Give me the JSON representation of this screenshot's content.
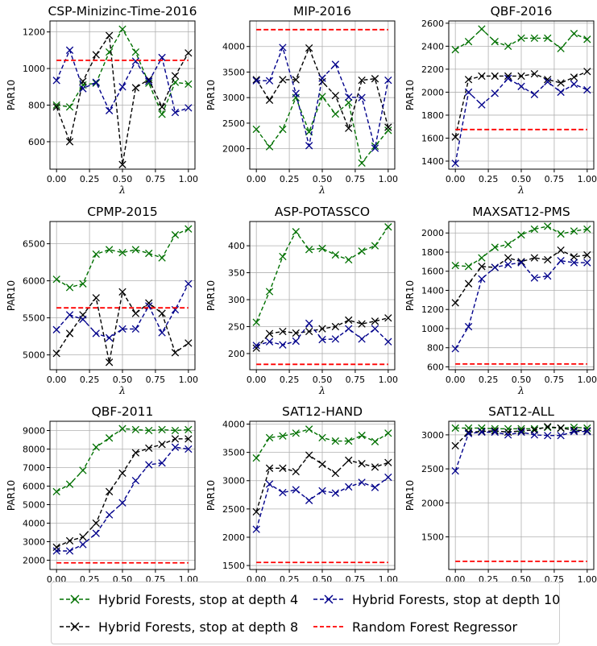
{
  "series_styles": [
    {
      "name": "Hybrid Forests, stop at depth 4",
      "color": "#007000",
      "marker": "x",
      "dash": "dashed"
    },
    {
      "name": "Hybrid Forests, stop at depth 8",
      "color": "#000000",
      "marker": "x",
      "dash": "dashed"
    },
    {
      "name": "Hybrid Forests, stop at depth 10",
      "color": "#00008b",
      "marker": "x",
      "dash": "dashed"
    },
    {
      "name": "Random Forest Regressor",
      "color": "#ff0000",
      "marker": "none",
      "dash": "dashed"
    }
  ],
  "legend": {
    "placement": "bottom-center",
    "items": [
      "Hybrid Forests, stop at depth 4",
      "Hybrid Forests, stop at depth 10",
      "Hybrid Forests, stop at depth 8",
      "Random Forest Regressor"
    ]
  },
  "chart_data": [
    {
      "type": "line",
      "title": "CSP-Minizinc-Time-2016",
      "xlabel": "λ",
      "ylabel": "PAR10",
      "x": [
        0,
        0.1,
        0.2,
        0.3,
        0.4,
        0.5,
        0.6,
        0.7,
        0.8,
        0.9,
        1.0
      ],
      "xlim": [
        -0.05,
        1.05
      ],
      "ylim": [
        450,
        1260
      ],
      "xticks": [
        "0.00",
        "0.25",
        "0.50",
        "0.75",
        "1.00"
      ],
      "xtick_values": [
        0,
        0.25,
        0.5,
        0.75,
        1.0
      ],
      "yticks": [
        600,
        800,
        1000,
        1200
      ],
      "grid": true,
      "series": [
        {
          "name": "Hybrid Forests, stop at depth 4",
          "values": [
            800,
            790,
            910,
            920,
            1090,
            1215,
            1090,
            920,
            750,
            925,
            915
          ]
        },
        {
          "name": "Hybrid Forests, stop at depth 8",
          "values": [
            790,
            600,
            930,
            1075,
            1180,
            475,
            895,
            940,
            790,
            960,
            1085
          ]
        },
        {
          "name": "Hybrid Forests, stop at depth 10",
          "values": [
            935,
            1100,
            890,
            925,
            770,
            900,
            1040,
            930,
            1060,
            760,
            785
          ]
        },
        {
          "name": "Random Forest Regressor",
          "values": [
            1045,
            1045,
            1045,
            1045,
            1045,
            1045,
            1045,
            1045,
            1045,
            1045,
            1045
          ]
        }
      ]
    },
    {
      "type": "line",
      "title": "MIP-2016",
      "xlabel": "λ",
      "ylabel": "PAR10",
      "x": [
        0,
        0.1,
        0.2,
        0.3,
        0.4,
        0.5,
        0.6,
        0.7,
        0.8,
        0.9,
        1.0
      ],
      "xlim": [
        -0.05,
        1.05
      ],
      "ylim": [
        1600,
        4500
      ],
      "xticks": [
        "0.00",
        "0.25",
        "0.50",
        "0.75",
        "1.00"
      ],
      "xtick_values": [
        0,
        0.25,
        0.5,
        0.75,
        1.0
      ],
      "yticks": [
        2000,
        2500,
        3000,
        3500,
        4000
      ],
      "grid": true,
      "series": [
        {
          "name": "Hybrid Forests, stop at depth 4",
          "values": [
            2380,
            2040,
            2380,
            3000,
            2330,
            3020,
            2680,
            2900,
            1720,
            2050,
            2360
          ]
        },
        {
          "name": "Hybrid Forests, stop at depth 8",
          "values": [
            3350,
            2950,
            3350,
            3350,
            3970,
            3310,
            3040,
            2400,
            3340,
            3370,
            2420
          ]
        },
        {
          "name": "Hybrid Forests, stop at depth 10",
          "values": [
            3330,
            3330,
            3980,
            3080,
            2060,
            3380,
            3650,
            3010,
            3000,
            2010,
            3340
          ]
        },
        {
          "name": "Random Forest Regressor",
          "values": [
            4330,
            4330,
            4330,
            4330,
            4330,
            4330,
            4330,
            4330,
            4330,
            4330,
            4330
          ]
        }
      ]
    },
    {
      "type": "line",
      "title": "QBF-2016",
      "xlabel": "λ",
      "ylabel": "PAR10",
      "x": [
        0,
        0.1,
        0.2,
        0.3,
        0.4,
        0.5,
        0.6,
        0.7,
        0.8,
        0.9,
        1.0
      ],
      "xlim": [
        -0.05,
        1.05
      ],
      "ylim": [
        1330,
        2620
      ],
      "xticks": [
        "0.00",
        "0.25",
        "0.50",
        "0.75",
        "1.00"
      ],
      "xtick_values": [
        0,
        0.25,
        0.5,
        0.75,
        1.0
      ],
      "yticks": [
        1400,
        1600,
        1800,
        2000,
        2200,
        2400,
        2600
      ],
      "grid": true,
      "series": [
        {
          "name": "Hybrid Forests, stop at depth 4",
          "values": [
            2370,
            2440,
            2550,
            2440,
            2400,
            2470,
            2470,
            2470,
            2380,
            2510,
            2460
          ]
        },
        {
          "name": "Hybrid Forests, stop at depth 8",
          "values": [
            1610,
            2110,
            2140,
            2140,
            2140,
            2140,
            2160,
            2110,
            2080,
            2130,
            2180
          ]
        },
        {
          "name": "Hybrid Forests, stop at depth 10",
          "values": [
            1380,
            2000,
            1890,
            1990,
            2120,
            2050,
            1980,
            2090,
            2000,
            2070,
            2020
          ]
        },
        {
          "name": "Random Forest Regressor",
          "values": [
            1675,
            1675,
            1675,
            1675,
            1675,
            1675,
            1675,
            1675,
            1675,
            1675,
            1675
          ]
        }
      ]
    },
    {
      "type": "line",
      "title": "CPMP-2015",
      "xlabel": "λ",
      "ylabel": "PAR10",
      "x": [
        0,
        0.1,
        0.2,
        0.3,
        0.4,
        0.5,
        0.6,
        0.7,
        0.8,
        0.9,
        1.0
      ],
      "xlim": [
        -0.05,
        1.05
      ],
      "ylim": [
        4800,
        6800
      ],
      "xticks": [
        "0.00",
        "0.25",
        "0.50",
        "0.75",
        "1.00"
      ],
      "xtick_values": [
        0,
        0.25,
        0.5,
        0.75,
        1.0
      ],
      "yticks": [
        5000,
        5500,
        6000,
        6500
      ],
      "grid": true,
      "series": [
        {
          "name": "Hybrid Forests, stop at depth 4",
          "values": [
            6020,
            5910,
            5960,
            6360,
            6420,
            6380,
            6420,
            6370,
            6310,
            6620,
            6700
          ]
        },
        {
          "name": "Hybrid Forests, stop at depth 8",
          "values": [
            5020,
            5290,
            5540,
            5770,
            4900,
            5850,
            5560,
            5700,
            5560,
            5030,
            5160
          ]
        },
        {
          "name": "Hybrid Forests, stop at depth 10",
          "values": [
            5340,
            5540,
            5480,
            5290,
            5230,
            5350,
            5350,
            5660,
            5300,
            5610,
            5960
          ]
        },
        {
          "name": "Random Forest Regressor",
          "values": [
            5635,
            5635,
            5635,
            5635,
            5635,
            5635,
            5635,
            5635,
            5635,
            5635,
            5635
          ]
        }
      ]
    },
    {
      "type": "line",
      "title": "ASP-POTASSCO",
      "xlabel": "λ",
      "ylabel": "PAR10",
      "x": [
        0,
        0.1,
        0.2,
        0.3,
        0.4,
        0.5,
        0.6,
        0.7,
        0.8,
        0.9,
        1.0
      ],
      "xlim": [
        -0.05,
        1.05
      ],
      "ylim": [
        170,
        445
      ],
      "xticks": [
        "0.00",
        "0.25",
        "0.50",
        "0.75",
        "1.00"
      ],
      "xtick_values": [
        0,
        0.25,
        0.5,
        0.75,
        1.0
      ],
      "yticks": [
        200,
        250,
        300,
        350,
        400
      ],
      "grid": true,
      "series": [
        {
          "name": "Hybrid Forests, stop at depth 4",
          "values": [
            258,
            315,
            380,
            426,
            393,
            395,
            383,
            374,
            390,
            400,
            435
          ]
        },
        {
          "name": "Hybrid Forests, stop at depth 8",
          "values": [
            210,
            237,
            241,
            238,
            241,
            246,
            250,
            262,
            255,
            260,
            266
          ]
        },
        {
          "name": "Hybrid Forests, stop at depth 10",
          "values": [
            215,
            222,
            216,
            223,
            256,
            226,
            227,
            246,
            227,
            246,
            222
          ]
        },
        {
          "name": "Random Forest Regressor",
          "values": [
            180,
            180,
            180,
            180,
            180,
            180,
            180,
            180,
            180,
            180,
            180
          ]
        }
      ]
    },
    {
      "type": "line",
      "title": "MAXSAT12-PMS",
      "xlabel": "λ",
      "ylabel": "PAR10",
      "x": [
        0,
        0.1,
        0.2,
        0.3,
        0.4,
        0.5,
        0.6,
        0.7,
        0.8,
        0.9,
        1.0
      ],
      "xlim": [
        -0.05,
        1.05
      ],
      "ylim": [
        570,
        2120
      ],
      "xticks": [
        "0.00",
        "0.25",
        "0.50",
        "0.75",
        "1.00"
      ],
      "xtick_values": [
        0,
        0.25,
        0.5,
        0.75,
        1.0
      ],
      "yticks": [
        600,
        800,
        1000,
        1200,
        1400,
        1600,
        1800,
        2000
      ],
      "grid": true,
      "series": [
        {
          "name": "Hybrid Forests, stop at depth 4",
          "values": [
            1660,
            1650,
            1740,
            1850,
            1880,
            1980,
            2040,
            2070,
            1990,
            2020,
            2040
          ]
        },
        {
          "name": "Hybrid Forests, stop at depth 8",
          "values": [
            1270,
            1470,
            1650,
            1640,
            1740,
            1700,
            1740,
            1720,
            1820,
            1750,
            1770
          ]
        },
        {
          "name": "Hybrid Forests, stop at depth 10",
          "values": [
            790,
            1020,
            1520,
            1640,
            1670,
            1690,
            1530,
            1550,
            1710,
            1690,
            1690
          ]
        },
        {
          "name": "Random Forest Regressor",
          "values": [
            630,
            630,
            630,
            630,
            630,
            630,
            630,
            630,
            630,
            630,
            630
          ]
        }
      ]
    },
    {
      "type": "line",
      "title": "QBF-2011",
      "xlabel": "λ",
      "ylabel": "PAR10",
      "x": [
        0,
        0.1,
        0.2,
        0.3,
        0.4,
        0.5,
        0.6,
        0.7,
        0.8,
        0.9,
        1.0
      ],
      "xlim": [
        -0.05,
        1.05
      ],
      "ylim": [
        1500,
        9500
      ],
      "xticks": [
        "0.00",
        "0.25",
        "0.50",
        "0.75",
        "1.00"
      ],
      "xtick_values": [
        0,
        0.25,
        0.5,
        0.75,
        1.0
      ],
      "yticks": [
        2000,
        3000,
        4000,
        5000,
        6000,
        7000,
        8000,
        9000
      ],
      "grid": true,
      "series": [
        {
          "name": "Hybrid Forests, stop at depth 4",
          "values": [
            5700,
            6100,
            6850,
            8100,
            8600,
            9100,
            9050,
            9000,
            9050,
            9000,
            9050
          ]
        },
        {
          "name": "Hybrid Forests, stop at depth 8",
          "values": [
            2700,
            3050,
            3250,
            4000,
            5700,
            6700,
            7800,
            8050,
            8250,
            8550,
            8550
          ]
        },
        {
          "name": "Hybrid Forests, stop at depth 10",
          "values": [
            2500,
            2500,
            2850,
            3450,
            4450,
            5100,
            6300,
            7150,
            7250,
            8100,
            8000
          ]
        },
        {
          "name": "Random Forest Regressor",
          "values": [
            1860,
            1860,
            1860,
            1860,
            1860,
            1860,
            1860,
            1860,
            1860,
            1860,
            1860
          ]
        }
      ]
    },
    {
      "type": "line",
      "title": "SAT12-HAND",
      "xlabel": "λ",
      "ylabel": "PAR10",
      "x": [
        0,
        0.1,
        0.2,
        0.3,
        0.4,
        0.5,
        0.6,
        0.7,
        0.8,
        0.9,
        1.0
      ],
      "xlim": [
        -0.05,
        1.05
      ],
      "ylim": [
        1430,
        4050
      ],
      "xticks": [
        "0.00",
        "0.25",
        "0.50",
        "0.75",
        "1.00"
      ],
      "xtick_values": [
        0,
        0.25,
        0.5,
        0.75,
        1.0
      ],
      "yticks": [
        1500,
        2000,
        2500,
        3000,
        3500,
        4000
      ],
      "grid": true,
      "series": [
        {
          "name": "Hybrid Forests, stop at depth 4",
          "values": [
            3400,
            3760,
            3790,
            3840,
            3910,
            3760,
            3700,
            3700,
            3800,
            3690,
            3840
          ]
        },
        {
          "name": "Hybrid Forests, stop at depth 8",
          "values": [
            2450,
            3220,
            3220,
            3160,
            3450,
            3290,
            3130,
            3360,
            3300,
            3240,
            3320
          ]
        },
        {
          "name": "Hybrid Forests, stop at depth 10",
          "values": [
            2140,
            2940,
            2790,
            2840,
            2650,
            2820,
            2780,
            2890,
            2970,
            2880,
            3060
          ]
        },
        {
          "name": "Random Forest Regressor",
          "values": [
            1555,
            1555,
            1555,
            1555,
            1555,
            1555,
            1555,
            1555,
            1555,
            1555,
            1555
          ]
        }
      ]
    },
    {
      "type": "line",
      "title": "SAT12-ALL",
      "xlabel": "λ",
      "ylabel": "PAR10",
      "x": [
        0,
        0.1,
        0.2,
        0.3,
        0.4,
        0.5,
        0.6,
        0.7,
        0.8,
        0.9,
        1.0
      ],
      "xlim": [
        -0.05,
        1.05
      ],
      "ylim": [
        1020,
        3200
      ],
      "xticks": [
        "0.00",
        "0.25",
        "0.50",
        "0.75",
        "1.00"
      ],
      "xtick_values": [
        0,
        0.25,
        0.5,
        0.75,
        1.0
      ],
      "yticks": [
        1500,
        2000,
        2500,
        3000
      ],
      "grid": true,
      "series": [
        {
          "name": "Hybrid Forests, stop at depth 4",
          "values": [
            3100,
            3100,
            3100,
            3090,
            3090,
            3090,
            3090,
            3110,
            3100,
            3110,
            3100
          ]
        },
        {
          "name": "Hybrid Forests, stop at depth 8",
          "values": [
            2840,
            3040,
            3050,
            3060,
            3040,
            3060,
            3070,
            3120,
            3100,
            3070,
            3060
          ]
        },
        {
          "name": "Hybrid Forests, stop at depth 10",
          "values": [
            2470,
            3020,
            3040,
            3040,
            3000,
            3040,
            3000,
            2990,
            2990,
            3050,
            3050
          ]
        },
        {
          "name": "Random Forest Regressor",
          "values": [
            1140,
            1140,
            1140,
            1140,
            1140,
            1140,
            1140,
            1140,
            1140,
            1140,
            1140
          ]
        }
      ]
    }
  ]
}
